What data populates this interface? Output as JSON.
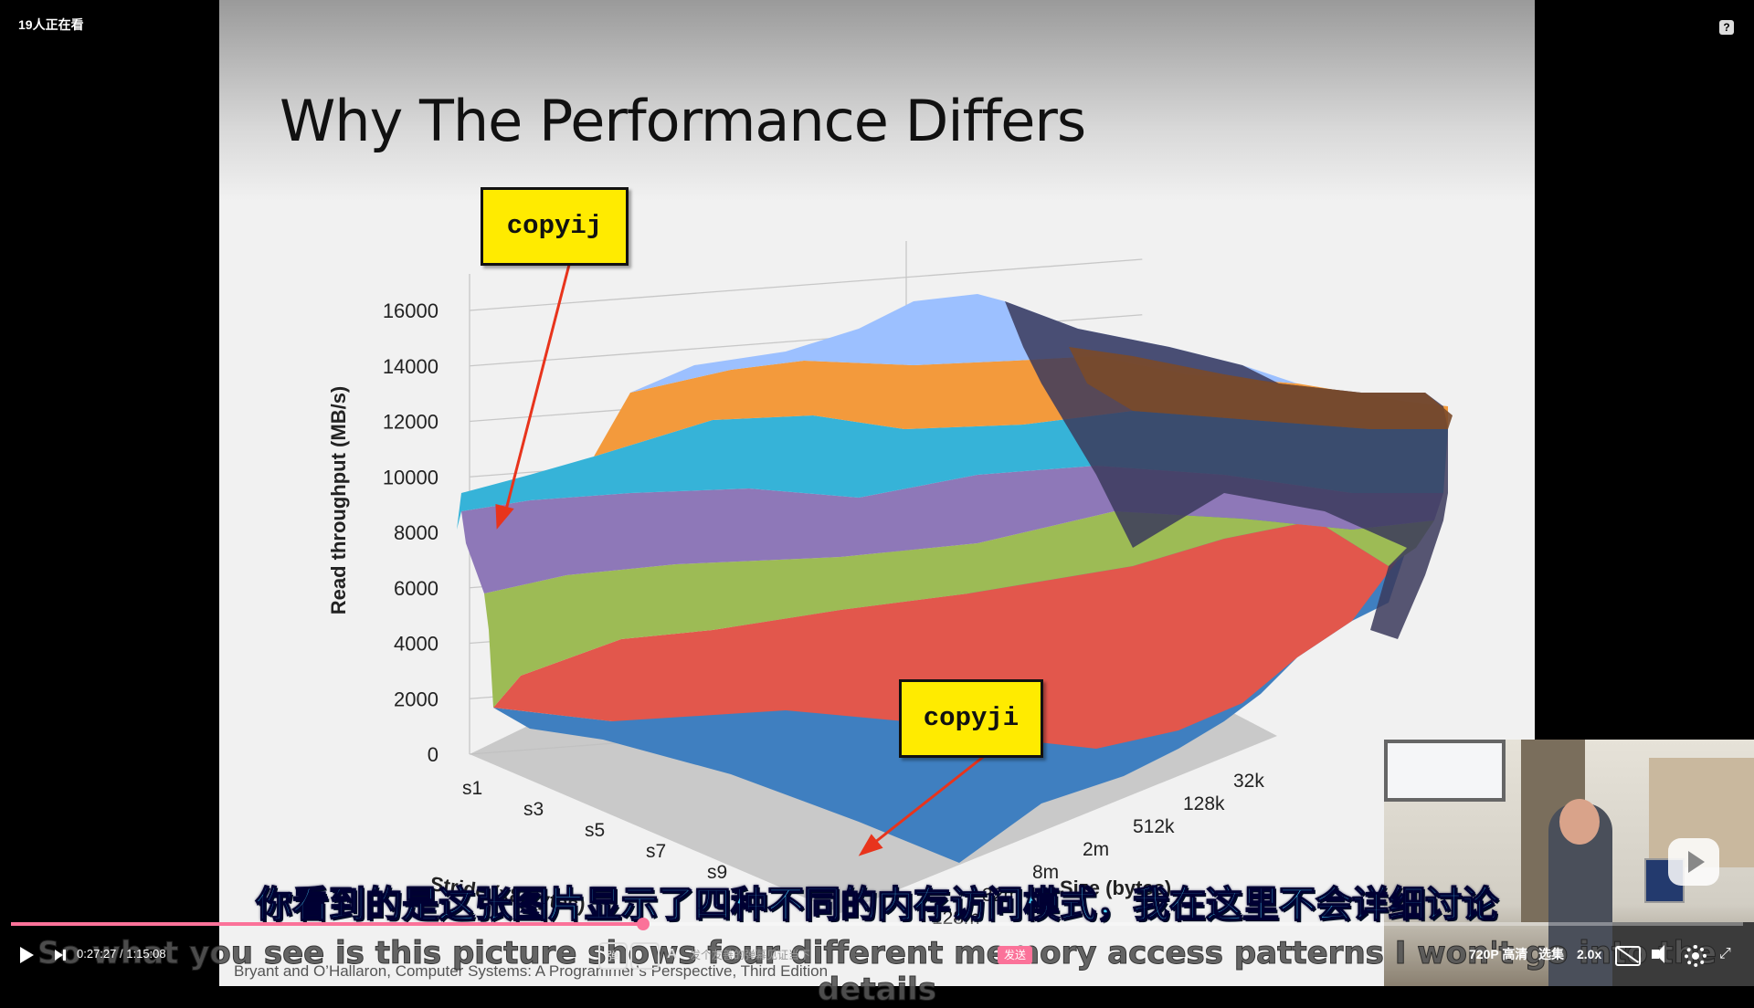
{
  "top": {
    "viewers": "19人正在看",
    "help_glyph": "?"
  },
  "slide": {
    "title": "Why The Performance Differs",
    "footer": "Bryant and O’Hallaron, Computer Systems: A Programmer’s Perspective, Third Edition",
    "callouts": [
      "copyij",
      "copyji"
    ]
  },
  "chart_data": {
    "type": "surface3d",
    "ylabel": "Read throughput (MB/s)",
    "xlabel": "Stride (x8 bytes)",
    "zlabel": "Size (bytes)",
    "y_ticks": [
      "0",
      "2000",
      "4000",
      "6000",
      "8000",
      "10000",
      "12000",
      "14000",
      "16000"
    ],
    "ylim": [
      0,
      16000
    ],
    "stride_ticks": [
      "s1",
      "s3",
      "s5",
      "s7",
      "s9"
    ],
    "size_ticks": [
      "32k",
      "128k",
      "512k",
      "2m",
      "8m",
      "32m",
      "128m"
    ],
    "band_colors": [
      "#3f7fc0",
      "#e2574c",
      "#9dbb55",
      "#8e78b8",
      "#36b3d8",
      "#f39a3c",
      "#9cc0ff"
    ],
    "annotations": [
      "copyij",
      "copyji"
    ]
  },
  "subtitles": {
    "cn": "你看到的是这张图片显示了四种不同的内存访问模式，我在这里不会详细讨论",
    "en": "So what you see is this picture shows four different memory access patterns I won't go into the details"
  },
  "player": {
    "current_time": "0:27:27",
    "separator": "/",
    "duration": "1:15:08",
    "progress": 0.365,
    "danmaku_toggle_label": "弹",
    "danmaku_placeholder": "发个友善的弹幕见证当下",
    "send_label": "发送",
    "quality": "720P 高清",
    "pick_episode": "选集",
    "speed": "2.0x",
    "accent_color": "#fb7299"
  }
}
